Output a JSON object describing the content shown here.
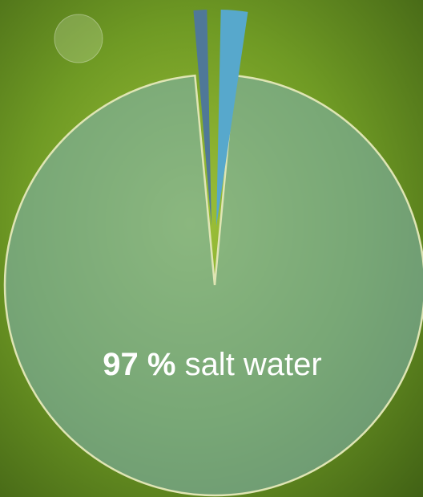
{
  "chart_data": {
    "type": "pie",
    "categories": [
      "salt water",
      null,
      null
    ],
    "values": [
      97,
      1,
      2
    ],
    "value_labels": [
      "97 %",
      null,
      null
    ],
    "colors": [
      "#7fb0ad",
      "#4f7898",
      "#57a8cc"
    ]
  }
}
